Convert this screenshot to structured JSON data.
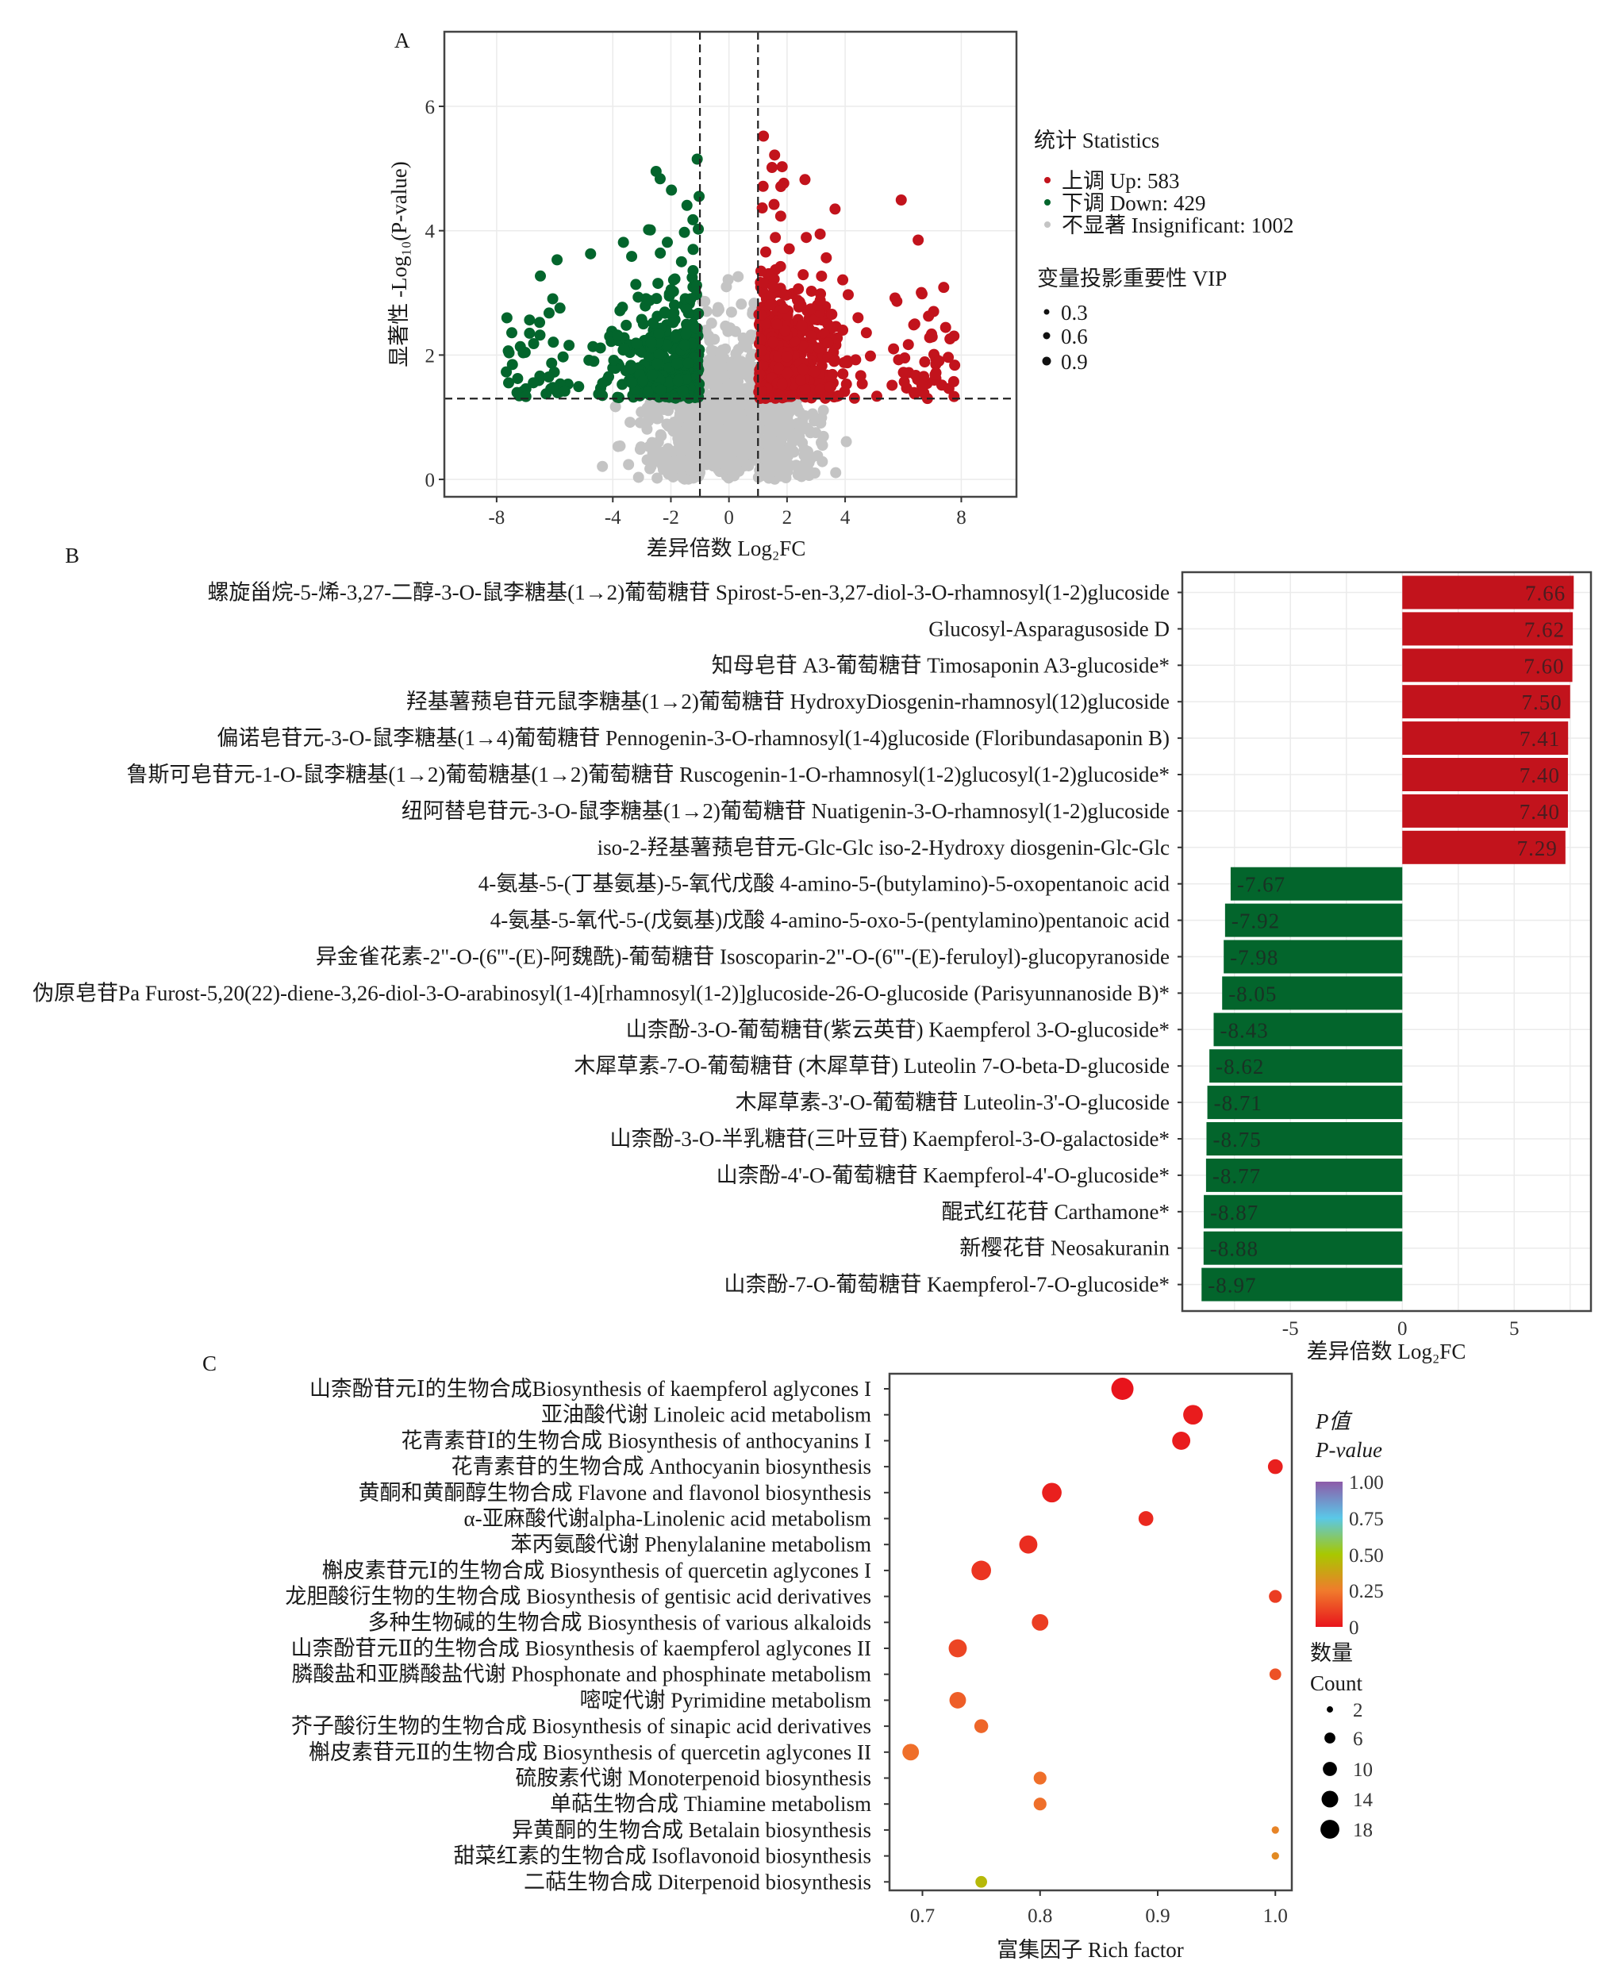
{
  "panels": {
    "a": "A",
    "b": "B",
    "c": "C"
  },
  "colors": {
    "up": "#c2131c",
    "down": "#03652c",
    "insignificant": "#c4c4c4"
  },
  "chart_data": [
    {
      "type": "scatter",
      "title": "Volcano plot",
      "xlabel": "差异倍数 Log₂FC",
      "ylabel": "显著性 -Log₁₀(P-value)",
      "x_ticks": [
        "-8",
        "-4",
        "-2",
        "0",
        "2",
        "4",
        "8"
      ],
      "x_tick_values": [
        -8,
        -4,
        -2,
        0,
        2,
        4,
        8
      ],
      "y_ticks": [
        "0",
        "2",
        "4",
        "6"
      ],
      "y_tick_values": [
        0,
        2,
        4,
        6
      ],
      "xlim": [
        -9.8,
        9.9
      ],
      "ylim": [
        -0.28,
        7.2
      ],
      "thresholds": {
        "log2fc": [
          -1,
          1
        ],
        "neg_log10_p": 1.3
      },
      "legend": {
        "position": "right",
        "stats_title": "统计 Statistics",
        "items": [
          {
            "label": "上调 Up: 583",
            "count": 583,
            "color": "#c2131c"
          },
          {
            "label": "下调 Down: 429",
            "count": 429,
            "color": "#03652c"
          },
          {
            "label": "不显著 Insignificant: 1002",
            "count": 1002,
            "color": "#c4c4c4"
          }
        ],
        "vip_title": "变量投影重要性 VIP",
        "vip_sizes": [
          "0.3",
          "0.6",
          "0.9"
        ]
      }
    },
    {
      "type": "bar",
      "orientation": "horizontal",
      "xlabel": "差异倍数  Log₂FC",
      "x_ticks": [
        "-5",
        "0",
        "5"
      ],
      "x_tick_values": [
        -5,
        0,
        5
      ],
      "xlim": [
        -9.83,
        8.43
      ],
      "categories": [
        "螺旋甾烷-5-烯-3,27-二醇-3-O-鼠李糖基(1→2)葡萄糖苷 Spirost-5-en-3,27-diol-3-O-rhamnosyl(1-2)glucoside",
        "Glucosyl-Asparagusoside D",
        "知母皂苷 A3-葡萄糖苷 Timosaponin A3-glucoside*",
        "羟基薯蓣皂苷元鼠李糖基(1→2)葡萄糖苷 HydroxyDiosgenin-rhamnosyl(12)glucoside",
        "偏诺皂苷元-3-O-鼠李糖基(1→4)葡萄糖苷 Pennogenin-3-O-rhamnosyl(1-4)glucoside (Floribundasaponin B)",
        "鲁斯可皂苷元-1-O-鼠李糖基(1→2)葡萄糖基(1→2)葡萄糖苷 Ruscogenin-1-O-rhamnosyl(1-2)glucosyl(1-2)glucoside*",
        "纽阿替皂苷元-3-O-鼠李糖基(1→2)葡萄糖苷 Nuatigenin-3-O-rhamnosyl(1-2)glucoside",
        "iso-2-羟基薯蓣皂苷元-Glc-Glc iso-2-Hydroxy diosgenin-Glc-Glc",
        "4-氨基-5-(丁基氨基)-5-氧代戊酸 4-amino-5-(butylamino)-5-oxopentanoic acid",
        "4-氨基-5-氧代-5-(戊氨基)戊酸 4-amino-5-oxo-5-(pentylamino)pentanoic acid",
        "异金雀花素-2\"-O-(6'''-(E)-阿魏酰)-葡萄糖苷 Isoscoparin-2\"-O-(6'''-(E)-feruloyl)-glucopyranoside",
        "伪原皂苷Pa Furost-5,20(22)-diene-3,26-diol-3-O-arabinosyl(1-4)[rhamnosyl(1-2)]glucoside-26-O-glucoside (Parisyunnanoside B)*",
        "山柰酚-3-O-葡萄糖苷(紫云英苷) Kaempferol 3-O-glucoside*",
        "木犀草素-7-O-葡萄糖苷 (木犀草苷) Luteolin 7-O-beta-D-glucoside",
        "木犀草素-3'-O-葡萄糖苷 Luteolin-3'-O-glucoside",
        "山柰酚-3-O-半乳糖苷(三叶豆苷) Kaempferol-3-O-galactoside*",
        "山柰酚-4'-O-葡萄糖苷 Kaempferol-4'-O-glucoside*",
        "醌式红花苷 Carthamone*",
        "新樱花苷 Neosakuranin",
        "山柰酚-7-O-葡萄糖苷 Kaempferol-7-O-glucoside*"
      ],
      "values": [
        7.66,
        7.62,
        7.6,
        7.5,
        7.41,
        7.4,
        7.4,
        7.29,
        -7.67,
        -7.92,
        -7.98,
        -8.05,
        -8.43,
        -8.62,
        -8.71,
        -8.75,
        -8.77,
        -8.87,
        -8.88,
        -8.97
      ],
      "value_labels": [
        "7.66",
        "7.62",
        "7.60",
        "7.50",
        "7.41",
        "7.40",
        "7.40",
        "7.29",
        "-7.67",
        "-7.92",
        "-7.98",
        "-8.05",
        "-8.43",
        "-8.62",
        "-8.71",
        "-8.75",
        "-8.77",
        "-8.87",
        "-8.88",
        "-8.97"
      ]
    },
    {
      "type": "scatter",
      "subtype": "bubble",
      "xlabel": "富集因子 Rich factor",
      "x_ticks": [
        "0.7",
        "0.8",
        "0.9",
        "1.0"
      ],
      "x_tick_values": [
        0.7,
        0.8,
        0.9,
        1.0
      ],
      "xlim": [
        0.672,
        1.014
      ],
      "categories": [
        "山柰酚苷元Ⅰ的生物合成Biosynthesis of kaempferol aglycones I",
        "亚油酸代谢 Linoleic acid metabolism",
        "花青素苷Ⅰ的生物合成 Biosynthesis of anthocyanins I",
        "花青素苷的生物合成 Anthocyanin biosynthesis",
        "黄酮和黄酮醇生物合成 Flavone and flavonol biosynthesis",
        "α-亚麻酸代谢alpha-Linolenic acid metabolism",
        "苯丙氨酸代谢 Phenylalanine metabolism",
        "槲皮素苷元Ⅰ的生物合成 Biosynthesis of quercetin aglycones I",
        "龙胆酸衍生物的生物合成 Biosynthesis of gentisic acid derivatives",
        "多种生物碱的生物合成 Biosynthesis of various alkaloids",
        "山柰酚苷元Ⅱ的生物合成 Biosynthesis of kaempferol aglycones II",
        "膦酸盐和亚膦酸盐代谢 Phosphonate and phosphinate metabolism",
        "嘧啶代谢 Pyrimidine metabolism",
        "芥子酸衍生物的生物合成 Biosynthesis of sinapic acid derivatives",
        "槲皮素苷元Ⅱ的生物合成 Biosynthesis of quercetin aglycones II",
        "硫胺素代谢 Monoterpenoid biosynthesis",
        "单萜生物合成 Thiamine metabolism",
        "异黄酮的生物合成 Betalain biosynthesis",
        "甜菜红素的生物合成 Isoflavonoid biosynthesis",
        "二萜生物合成 Diterpenoid biosynthesis"
      ],
      "rich_factor": [
        0.87,
        0.93,
        0.92,
        1.0,
        0.81,
        0.89,
        0.79,
        0.75,
        1.0,
        0.8,
        0.73,
        1.0,
        0.73,
        0.75,
        0.69,
        0.8,
        0.8,
        1.0,
        1.0,
        0.75
      ],
      "count": [
        18,
        14,
        12,
        8,
        14,
        8,
        12,
        14,
        6,
        10,
        12,
        5,
        10,
        7,
        10,
        6,
        6,
        2,
        2,
        5
      ],
      "p_value": [
        0.0,
        0.02,
        0.02,
        0.03,
        0.03,
        0.05,
        0.06,
        0.08,
        0.1,
        0.1,
        0.12,
        0.15,
        0.18,
        0.2,
        0.22,
        0.22,
        0.22,
        0.28,
        0.3,
        0.45
      ],
      "legend": {
        "position": "right",
        "color_title_1": "P值",
        "color_title_2": "P-value",
        "color_ticks": [
          "1.00",
          "0.75",
          "0.50",
          "0.25",
          "0"
        ],
        "size_title_1": "数量",
        "size_title_2": "Count",
        "size_ticks": [
          "2",
          "6",
          "10",
          "14",
          "18"
        ],
        "size_values": [
          2,
          6,
          10,
          14,
          18
        ]
      }
    }
  ]
}
